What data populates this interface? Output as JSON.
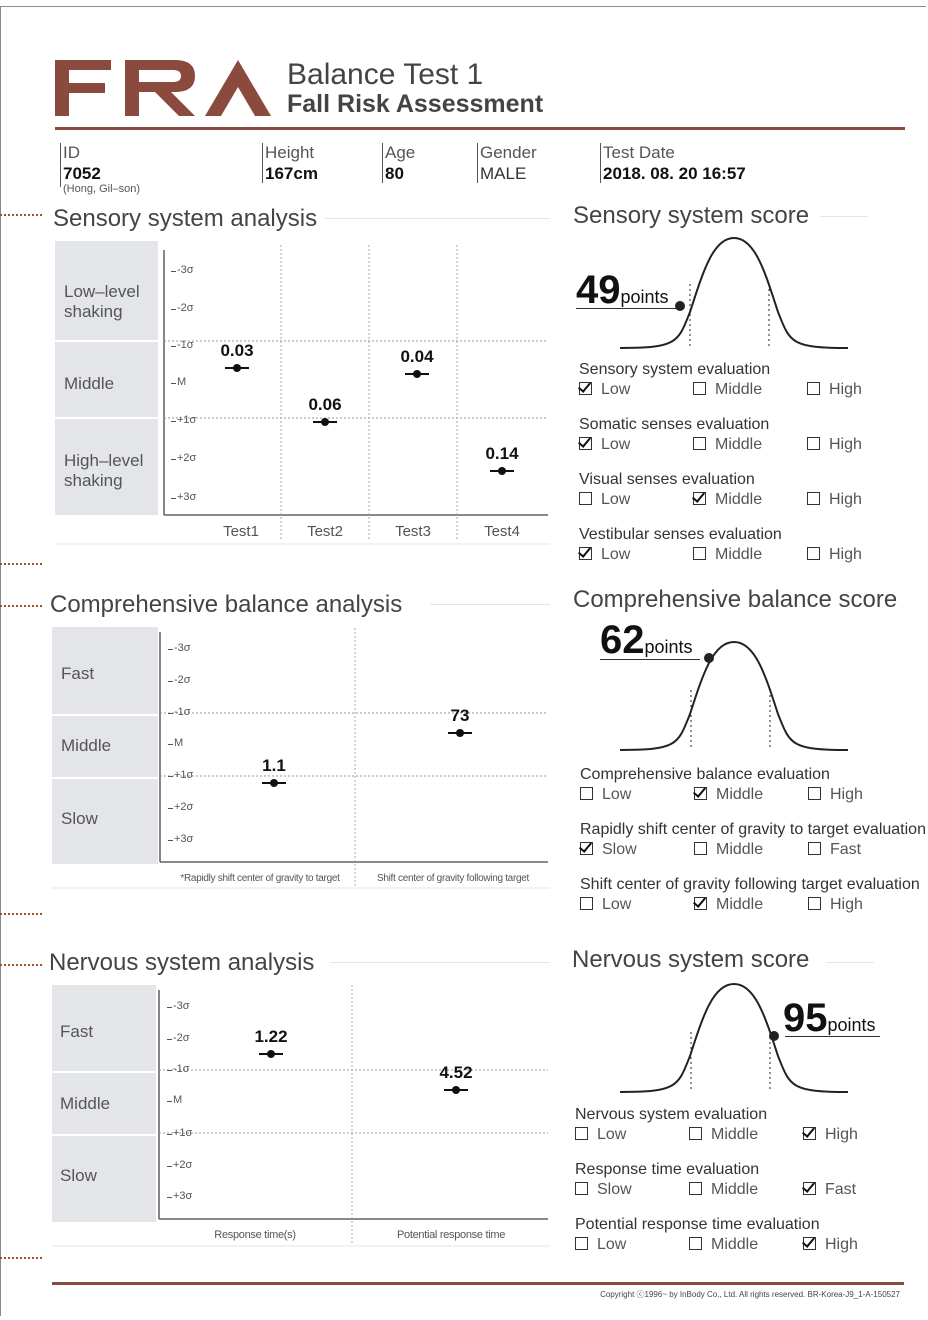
{
  "header": {
    "logo": "FRA",
    "title": "Balance Test 1",
    "subtitle": "Fall Risk Assessment",
    "id_label": "ID",
    "id_value": "7052",
    "name": "(Hong, Gil–son)",
    "height_label": "Height",
    "height_value": "167cm",
    "age_label": "Age",
    "age_value": "80",
    "gender_label": "Gender",
    "gender_value": "MALE",
    "date_label": "Test Date",
    "date_value": "2018. 08. 20 16:57"
  },
  "colors": {
    "brand": "#8b4a3e",
    "band": "#e3e5e8"
  },
  "sensory": {
    "title": "Sensory system analysis",
    "bands": [
      "Low–level shaking",
      "Middle",
      "High–level shaking"
    ],
    "yticks": [
      "-3σ",
      "-2σ",
      "-1σ",
      "M",
      "+1σ",
      "+2σ",
      "+3σ"
    ],
    "score_title": "Sensory system score",
    "score_value": "49",
    "score_unit": "points",
    "evaluations": [
      {
        "title": "Sensory system evaluation",
        "options": [
          "Low",
          "Middle",
          "High"
        ],
        "selected": 0
      },
      {
        "title": "Somatic senses evaluation",
        "options": [
          "Low",
          "Middle",
          "High"
        ],
        "selected": 0
      },
      {
        "title": "Visual senses evaluation",
        "options": [
          "Low",
          "Middle",
          "High"
        ],
        "selected": 1
      },
      {
        "title": "Vestibular senses evaluation",
        "options": [
          "Low",
          "Middle",
          "High"
        ],
        "selected": 0
      }
    ]
  },
  "comprehensive": {
    "title": "Comprehensive balance analysis",
    "bands": [
      "Fast",
      "Middle",
      "Slow"
    ],
    "yticks": [
      "-3σ",
      "-2σ",
      "-1σ",
      "M",
      "+1σ",
      "+2σ",
      "+3σ"
    ],
    "score_title": "Comprehensive balance score",
    "score_value": "62",
    "score_unit": "points",
    "evaluations": [
      {
        "title": "Comprehensive balance evaluation",
        "options": [
          "Low",
          "Middle",
          "High"
        ],
        "selected": 1
      },
      {
        "title": "Rapidly shift center of gravity to target evaluation",
        "options": [
          "Slow",
          "Middle",
          "Fast"
        ],
        "selected": 0
      },
      {
        "title": "Shift center of gravity following target evaluation",
        "options": [
          "Low",
          "Middle",
          "High"
        ],
        "selected": 1
      }
    ]
  },
  "nervous": {
    "title": "Nervous system analysis",
    "bands": [
      "Fast",
      "Middle",
      "Slow"
    ],
    "yticks": [
      "-3σ",
      "-2σ",
      "-1σ",
      "M",
      "+1σ",
      "+2σ",
      "+3σ"
    ],
    "score_title": "Nervous system score",
    "score_value": "95",
    "score_unit": "points",
    "evaluations": [
      {
        "title": "Nervous system evaluation",
        "options": [
          "Low",
          "Middle",
          "High"
        ],
        "selected": 2
      },
      {
        "title": "Response time evaluation",
        "options": [
          "Slow",
          "Middle",
          "Fast"
        ],
        "selected": 2
      },
      {
        "title": "Potential response time evaluation",
        "options": [
          "Low",
          "Middle",
          "High"
        ],
        "selected": 2
      }
    ]
  },
  "chart_data": [
    {
      "type": "scatter",
      "categories": [
        "Test1",
        "Test2",
        "Test3",
        "Test4"
      ],
      "values": [
        0.03,
        0.06,
        0.04,
        0.14
      ],
      "labels": [
        "0.03",
        "0.06",
        "0.04",
        "0.14"
      ],
      "positions_sigma": [
        -0.2,
        1.2,
        -0.05,
        2.5
      ],
      "ylim_sigma": [
        -3,
        3
      ]
    },
    {
      "type": "scatter",
      "categories": [
        "*Rapidly shift center of gravity to target",
        "Shift center of gravity following target"
      ],
      "values": [
        1.1,
        73
      ],
      "labels": [
        "1.1",
        "73"
      ],
      "positions_sigma": [
        1.25,
        -0.35
      ],
      "ylim_sigma": [
        -3,
        3
      ]
    },
    {
      "type": "scatter",
      "categories": [
        "Response time(s)",
        "Potential response time"
      ],
      "values": [
        1.22,
        4.52
      ],
      "labels": [
        "1.22",
        "4.52"
      ],
      "positions_sigma": [
        -1.5,
        -0.35
      ],
      "ylim_sigma": [
        -3,
        3
      ]
    }
  ],
  "footer": {
    "copyright": "Copyright ⓒ1996~ by InBody Co., Ltd. All rights reserved. BR-Korea-J9_1-A-150527"
  }
}
